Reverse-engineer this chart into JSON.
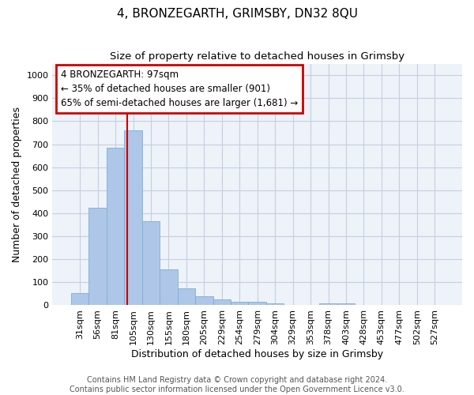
{
  "title": "4, BRONZEGARTH, GRIMSBY, DN32 8QU",
  "subtitle": "Size of property relative to detached houses in Grimsby",
  "xlabel": "Distribution of detached houses by size in Grimsby",
  "ylabel": "Number of detached properties",
  "categories": [
    "31sqm",
    "56sqm",
    "81sqm",
    "105sqm",
    "130sqm",
    "155sqm",
    "180sqm",
    "205sqm",
    "229sqm",
    "254sqm",
    "279sqm",
    "304sqm",
    "329sqm",
    "353sqm",
    "378sqm",
    "403sqm",
    "428sqm",
    "453sqm",
    "477sqm",
    "502sqm",
    "527sqm"
  ],
  "values": [
    52,
    425,
    685,
    760,
    365,
    155,
    75,
    38,
    25,
    15,
    14,
    8,
    0,
    0,
    8,
    8,
    0,
    0,
    0,
    0,
    0
  ],
  "bar_color": "#aec6e8",
  "bar_edge_color": "#7bafd4",
  "vline_x_index": 2.68,
  "vline_color": "#cc0000",
  "annotation_text": "4 BRONZEGARTH: 97sqm\n← 35% of detached houses are smaller (901)\n65% of semi-detached houses are larger (1,681) →",
  "annotation_box_edgecolor": "#cc0000",
  "ylim": [
    0,
    1050
  ],
  "yticks": [
    0,
    100,
    200,
    300,
    400,
    500,
    600,
    700,
    800,
    900,
    1000
  ],
  "footer_line1": "Contains HM Land Registry data © Crown copyright and database right 2024.",
  "footer_line2": "Contains public sector information licensed under the Open Government Licence v3.0.",
  "bg_color": "#eef2f9",
  "grid_color": "#c5cfe0",
  "title_fontsize": 11,
  "subtitle_fontsize": 9.5,
  "ylabel_fontsize": 9,
  "xlabel_fontsize": 9,
  "tick_fontsize": 8,
  "annotation_fontsize": 8.5,
  "footer_fontsize": 7
}
